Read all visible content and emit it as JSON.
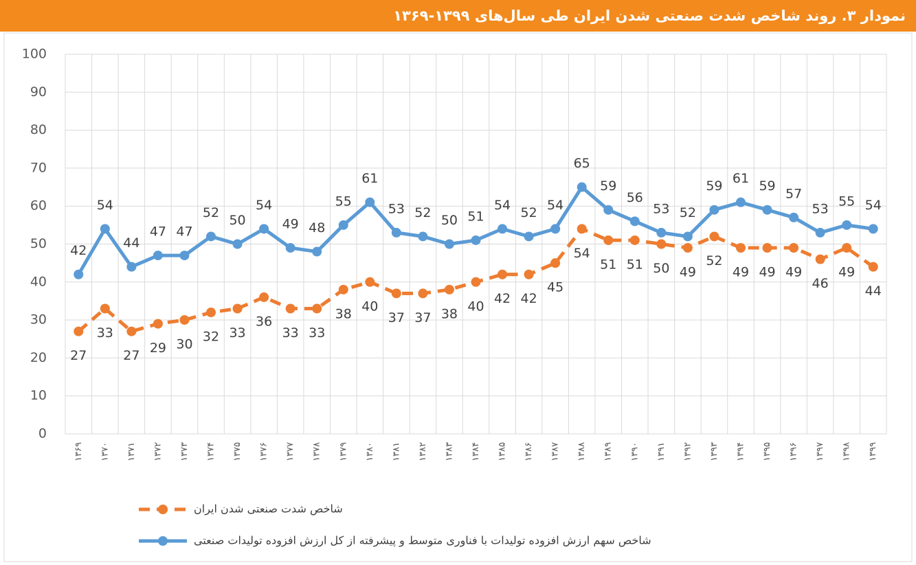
{
  "chart_data": {
    "type": "line",
    "title": "نمودار ۳. روند شاخص شدت صنعتی شدن ایران طی سال‌های ۱۳۹۹-۱۳۶۹",
    "categories": [
      "۱۳۶۹",
      "۱۳۷۰",
      "۱۳۷۱",
      "۱۳۷۲",
      "۱۳۷۳",
      "۱۳۷۴",
      "۱۳۷۵",
      "۱۳۷۶",
      "۱۳۷۷",
      "۱۳۷۸",
      "۱۳۷۹",
      "۱۳۸۰",
      "۱۳۸۱",
      "۱۳۸۲",
      "۱۳۸۳",
      "۱۳۸۴",
      "۱۳۸۵",
      "۱۳۸۶",
      "۱۳۸۷",
      "۱۳۸۸",
      "۱۳۸۹",
      "۱۳۹۰",
      "۱۳۹۱",
      "۱۳۹۲",
      "۱۳۹۳",
      "۱۳۹۴",
      "۱۳۹۵",
      "۱۳۹۶",
      "۱۳۹۷",
      "۱۳۹۸",
      "۱۳۹۹"
    ],
    "series": [
      {
        "name": "شاخص شدت صنعتی شدن ایران",
        "color": "#ed7d31",
        "dashed": true,
        "values": [
          27,
          33,
          27,
          29,
          30,
          32,
          33,
          36,
          33,
          33,
          38,
          40,
          37,
          37,
          38,
          40,
          42,
          42,
          45,
          54,
          51,
          51,
          50,
          49,
          52,
          49,
          49,
          49,
          46,
          49,
          44
        ]
      },
      {
        "name": "شاخص سهم ارزش افزوده تولیدات با فناوری متوسط و پیشرفته از کل ارزش افزوده تولیدات صنعتی",
        "color": "#5b9bd5",
        "dashed": false,
        "values": [
          42,
          54,
          44,
          47,
          47,
          52,
          50,
          54,
          49,
          48,
          55,
          61,
          53,
          52,
          50,
          51,
          54,
          52,
          54,
          65,
          59,
          56,
          53,
          52,
          59,
          61,
          59,
          57,
          53,
          55,
          54
        ]
      }
    ],
    "ylim": [
      0,
      100
    ],
    "yticks": [
      0,
      10,
      20,
      30,
      40,
      50,
      60,
      70,
      80,
      90,
      100
    ],
    "grid": true
  }
}
